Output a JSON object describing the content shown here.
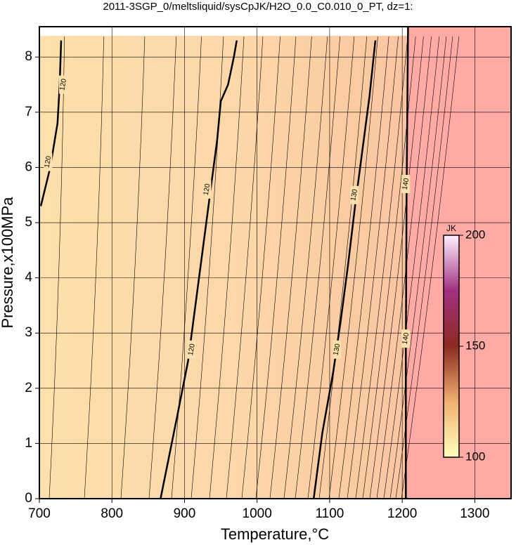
{
  "chart_data": {
    "type": "contour",
    "title": "2011-3SGP_0/meltsliquid/sysCpJK/H2O_0.0_C0.010_0_PT, dz=1:",
    "x_label": "Temperature,°C",
    "y_label": "Pressure,x100MPa",
    "xlim": [
      700,
      1350
    ],
    "ylim": [
      0,
      8.55
    ],
    "xticks": [
      700,
      800,
      900,
      1000,
      1100,
      1200,
      1300
    ],
    "yticks": [
      0,
      1,
      2,
      3,
      4,
      5,
      6,
      7,
      8
    ],
    "grid": true,
    "contours": [
      {
        "level": 120,
        "x": [
          730,
          728,
          725,
          715,
          702
        ],
        "y": [
          8.3,
          7.5,
          6.8,
          6.0,
          5.3
        ],
        "label_x": [
          733,
          712
        ],
        "label_y": [
          7.5,
          6.1
        ]
      },
      {
        "level": 120,
        "x": [
          867,
          890,
          905,
          915,
          925,
          935,
          945,
          950,
          960,
          968,
          972
        ],
        "y": [
          0,
          1.5,
          2.5,
          3.5,
          4.5,
          5.5,
          6.5,
          7.2,
          7.5,
          8.0,
          8.3
        ],
        "label_x": [
          910,
          931
        ],
        "label_y": [
          2.7,
          5.6
        ]
      },
      {
        "level": 130,
        "x": [
          1078,
          1090,
          1105,
          1115,
          1125,
          1135,
          1145,
          1155,
          1163
        ],
        "y": [
          0,
          1.2,
          2.3,
          3.2,
          4.2,
          5.3,
          6.3,
          7.3,
          8.3
        ],
        "label_x": [
          1110,
          1134
        ],
        "label_y": [
          2.7,
          5.5
        ]
      },
      {
        "level": 140,
        "x": [
          1205,
          1205,
          1206,
          1208
        ],
        "y": [
          0,
          2.7,
          5.5,
          8.55
        ],
        "label_x": [
          1205,
          1205
        ],
        "label_y": [
          2.9,
          5.7
        ]
      }
    ],
    "colorbar": {
      "title": "JK",
      "lim": [
        100,
        200
      ],
      "ticks": [
        100,
        150,
        200
      ]
    }
  }
}
